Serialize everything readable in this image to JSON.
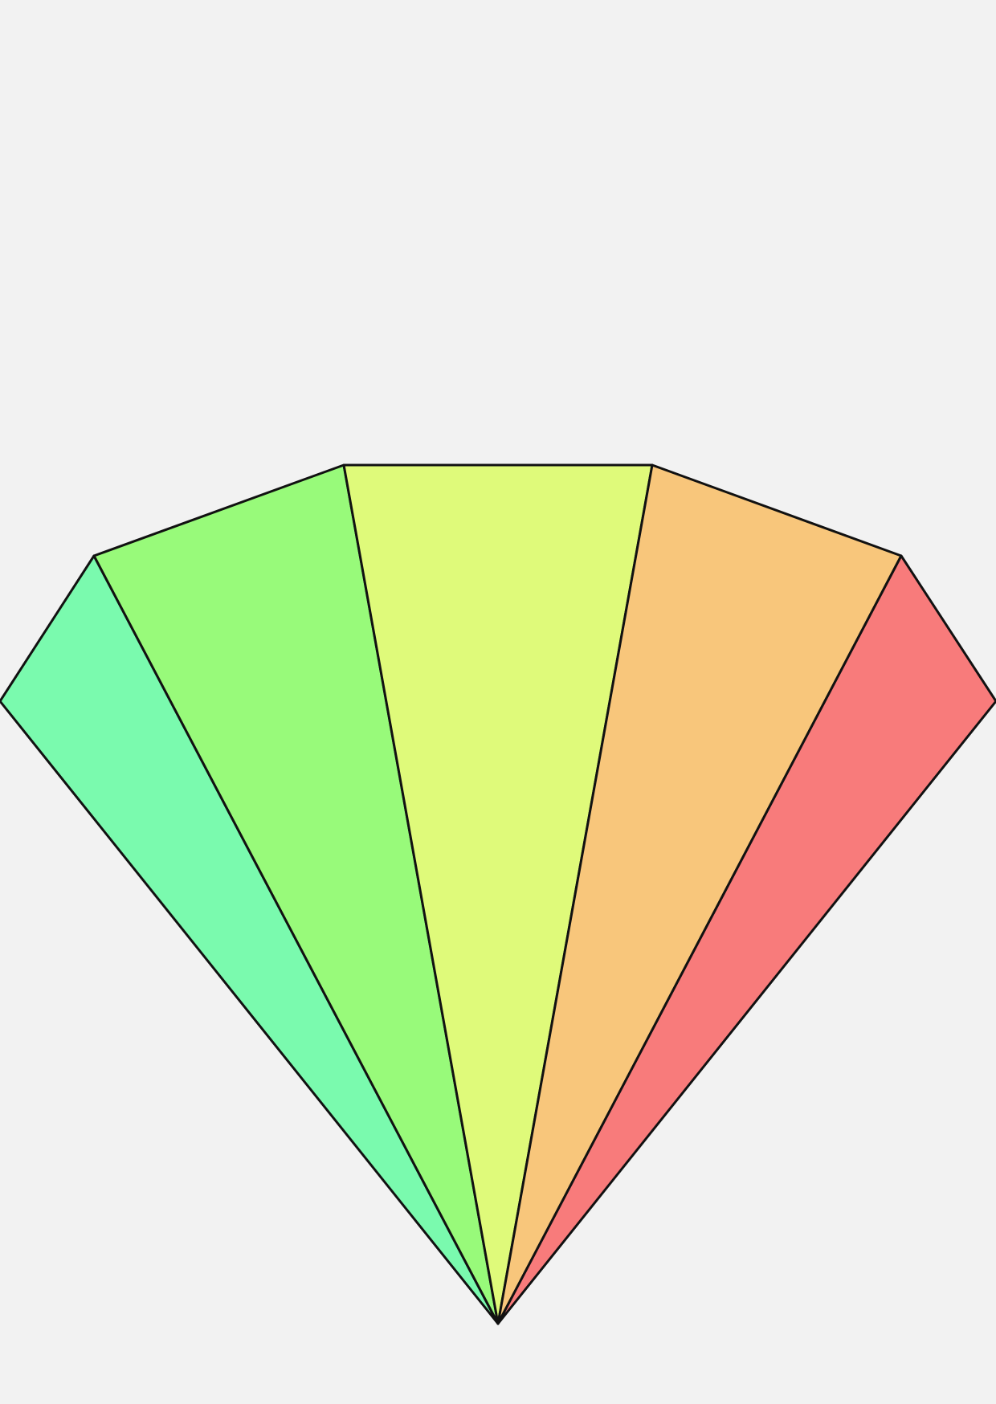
{
  "background_color": "#f2f2f2",
  "outline_color": "#111111",
  "segments": [
    {
      "name": "segment-teal",
      "color": "#7afaae"
    },
    {
      "name": "segment-green",
      "color": "#98fa7a"
    },
    {
      "name": "segment-yellow",
      "color": "#dffa7a"
    },
    {
      "name": "segment-orange",
      "color": "#f8c67b"
    },
    {
      "name": "segment-red",
      "color": "#f87b7b"
    }
  ]
}
